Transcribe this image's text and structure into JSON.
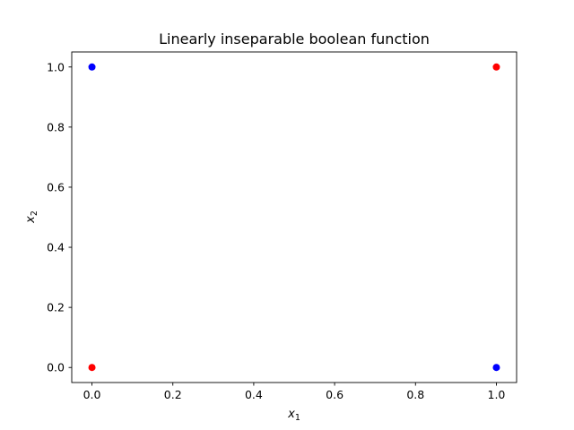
{
  "chart_data": {
    "type": "scatter",
    "title": "Linearly inseparable boolean function",
    "xlabel": {
      "symbol": "x",
      "subscript": "1"
    },
    "ylabel": {
      "symbol": "x",
      "subscript": "2"
    },
    "xlim": [
      -0.05,
      1.05
    ],
    "ylim": [
      -0.05,
      1.05
    ],
    "xticks": [
      0.0,
      0.2,
      0.4,
      0.6,
      0.8,
      1.0
    ],
    "yticks": [
      0.0,
      0.2,
      0.4,
      0.6,
      0.8,
      1.0
    ],
    "xtick_labels": [
      "0.0",
      "0.2",
      "0.4",
      "0.6",
      "0.8",
      "1.0"
    ],
    "ytick_labels": [
      "0.0",
      "0.2",
      "0.4",
      "0.6",
      "0.8",
      "1.0"
    ],
    "grid": false,
    "points": [
      {
        "x": 0,
        "y": 0,
        "color": "#ff0000"
      },
      {
        "x": 0,
        "y": 1,
        "color": "#0000ff"
      },
      {
        "x": 1,
        "y": 0,
        "color": "#0000ff"
      },
      {
        "x": 1,
        "y": 1,
        "color": "#ff0000"
      }
    ]
  }
}
